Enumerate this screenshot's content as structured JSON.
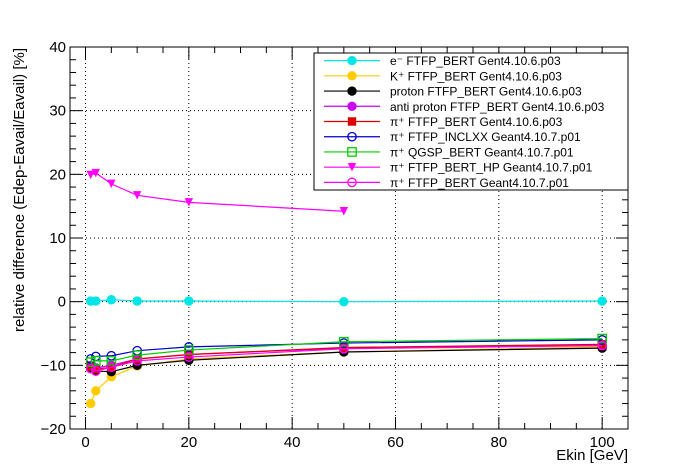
{
  "chart_data": {
    "type": "line",
    "xlabel": "Ekin [GeV]",
    "ylabel": "relative difference (Edep-Eavail/Eavail) [%]",
    "xlim": [
      -3,
      105
    ],
    "ylim": [
      -20,
      40
    ],
    "xticks": [
      0,
      20,
      40,
      60,
      80,
      100
    ],
    "yticks": [
      -20,
      -10,
      0,
      10,
      20,
      30,
      40
    ],
    "grid": true,
    "legend_position": "top-right",
    "series": [
      {
        "name": "e⁻ FTFP_BERT Gent4.10.6.p03",
        "color": "#00e5e5",
        "marker": "circle-filled",
        "points": [
          [
            1,
            0.1
          ],
          [
            2,
            0.1
          ],
          [
            5,
            0.3
          ],
          [
            10,
            0.1
          ],
          [
            20,
            0.1
          ],
          [
            50,
            0.0
          ],
          [
            100,
            0.1
          ]
        ]
      },
      {
        "name": "K⁺ FTFP_BERT Gent4.10.6.p03",
        "color": "#ffcc00",
        "marker": "circle-filled",
        "points": [
          [
            1,
            -16.0
          ],
          [
            2,
            -14.0
          ],
          [
            5,
            -11.8
          ],
          [
            10,
            -10.1
          ],
          [
            20,
            -9.0
          ],
          [
            50,
            -7.9
          ],
          [
            100,
            -7.1
          ]
        ]
      },
      {
        "name": "proton FTFP_BERT Gent4.10.6.p03",
        "color": "#000000",
        "marker": "circle-filled",
        "points": [
          [
            1,
            -10.5
          ],
          [
            2,
            -10.9
          ],
          [
            5,
            -11.0
          ],
          [
            10,
            -10.0
          ],
          [
            20,
            -9.2
          ],
          [
            50,
            -7.9
          ],
          [
            100,
            -7.3
          ]
        ]
      },
      {
        "name": "anti proton FTFP_BERT Gent4.10.6.p03",
        "color": "#cc00ff",
        "marker": "circle-filled",
        "points": [
          [
            1,
            -10.0
          ],
          [
            2,
            -10.4
          ],
          [
            5,
            -10.0
          ],
          [
            10,
            -9.0
          ],
          [
            20,
            -8.3
          ],
          [
            50,
            -7.3
          ],
          [
            100,
            -6.8
          ]
        ]
      },
      {
        "name": "π⁺ FTFP_BERT Gent4.10.6.p03",
        "color": "#dd0000",
        "marker": "square-filled",
        "points": [
          [
            1,
            -10.2
          ],
          [
            2,
            -10.6
          ],
          [
            5,
            -10.3
          ],
          [
            10,
            -9.0
          ],
          [
            20,
            -8.3
          ],
          [
            50,
            -7.2
          ],
          [
            100,
            -6.7
          ]
        ]
      },
      {
        "name": "π⁺ FTFP_INCLXX Geant4.10.7.p01",
        "color": "#0000cc",
        "marker": "circle-open",
        "points": [
          [
            1,
            -9.0
          ],
          [
            2,
            -8.6
          ],
          [
            5,
            -8.5
          ],
          [
            10,
            -7.7
          ],
          [
            20,
            -7.1
          ],
          [
            50,
            -6.5
          ],
          [
            100,
            -6.0
          ]
        ]
      },
      {
        "name": "π⁺ QGSP_BERT Geant4.10.7.p01",
        "color": "#00cc00",
        "marker": "square-open",
        "points": [
          [
            1,
            -9.5
          ],
          [
            2,
            -9.3
          ],
          [
            5,
            -9.3
          ],
          [
            10,
            -8.4
          ],
          [
            20,
            -7.6
          ],
          [
            50,
            -6.3
          ],
          [
            100,
            -5.8
          ]
        ]
      },
      {
        "name": "π⁺ FTFP_BERT_HP Geant4.10.7.p01",
        "color": "#ff00ff",
        "marker": "triangle-down",
        "points": [
          [
            1,
            19.9
          ],
          [
            2,
            20.2
          ],
          [
            5,
            18.5
          ],
          [
            10,
            16.7
          ],
          [
            20,
            15.6
          ],
          [
            50,
            14.2
          ]
        ]
      },
      {
        "name": "π⁺ FTFP_BERT Geant4.10.7.p01",
        "color": "#ff00ff",
        "marker": "circle-open",
        "points": [
          [
            1,
            -10.5
          ],
          [
            2,
            -10.9
          ],
          [
            5,
            -10.3
          ],
          [
            10,
            -9.3
          ],
          [
            20,
            -8.7
          ],
          [
            50,
            -7.4
          ],
          [
            100,
            -6.9
          ]
        ]
      }
    ]
  }
}
